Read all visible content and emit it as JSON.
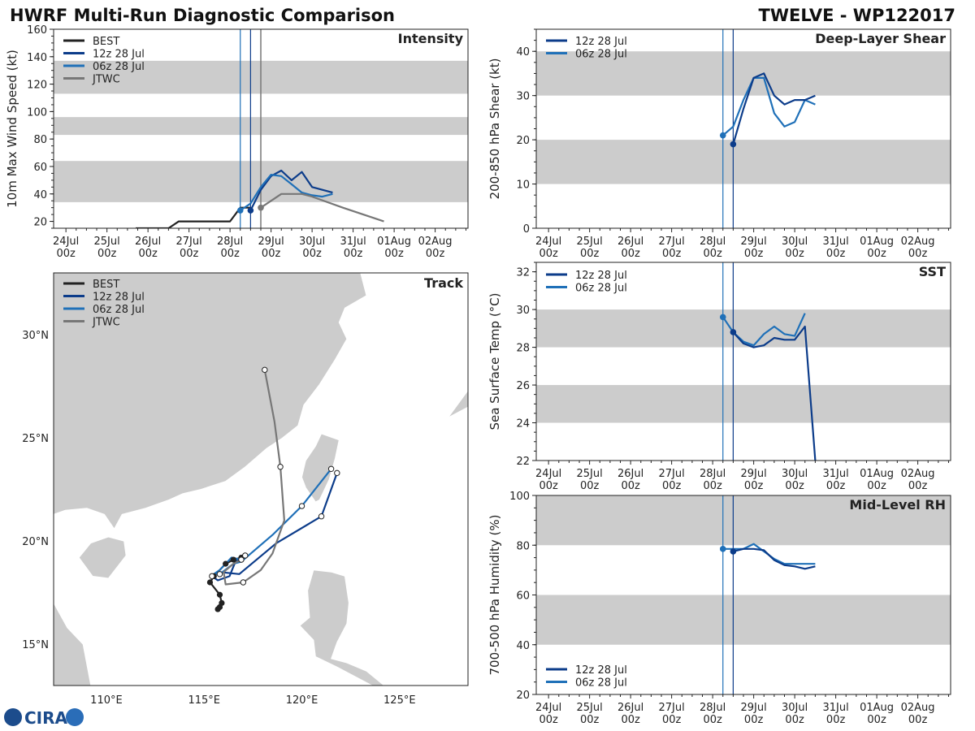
{
  "header": {
    "left_title": "HWRF Multi-Run Diagnostic Comparison",
    "right_title": "TWELVE - WP122017"
  },
  "logo": {
    "text": "CIRA"
  },
  "colors": {
    "best": "#222222",
    "run12z": "#0c3c8a",
    "run06z": "#1f70b8",
    "jtwc": "#777777",
    "band": "#cccccc",
    "land": "#cccccc"
  },
  "time_axis": {
    "day_labels": [
      "24Jul",
      "25Jul",
      "26Jul",
      "27Jul",
      "28Jul",
      "29Jul",
      "30Jul",
      "31Jul",
      "01Aug",
      "02Aug"
    ],
    "hour_label": "00z",
    "range_days": [
      23.7,
      33.8
    ],
    "init_lines": [
      28.25,
      28.5
    ]
  },
  "chart_data": [
    {
      "id": "intensity",
      "type": "line",
      "title": "Intensity",
      "ylabel": "10m Max Wind Speed (kt)",
      "ylim": [
        15,
        160
      ],
      "yticks": [
        20,
        40,
        60,
        80,
        100,
        120,
        140,
        160
      ],
      "bands": [
        [
          34,
          64
        ],
        [
          83,
          96
        ],
        [
          113,
          137
        ]
      ],
      "extra_vline": 28.75,
      "legend": [
        "BEST",
        "12z 28 Jul",
        "06z 28 Jul",
        "JTWC"
      ],
      "series": [
        {
          "name": "BEST",
          "color": "best",
          "x": [
            25.7,
            26.5,
            26.75,
            28.0,
            28.25,
            28.5
          ],
          "y": [
            15,
            15,
            20,
            20,
            30,
            30
          ],
          "marker_at_end": false
        },
        {
          "name": "12z 28 Jul",
          "color": "run12z",
          "x": [
            28.5,
            28.75,
            29.0,
            29.25,
            29.5,
            29.75,
            30.0,
            30.5
          ],
          "y": [
            28,
            43,
            53,
            57,
            50,
            56,
            45,
            41
          ],
          "start_marker": true
        },
        {
          "name": "06z 28 Jul",
          "color": "run06z",
          "x": [
            28.25,
            28.5,
            28.75,
            29.0,
            29.25,
            29.5,
            29.75,
            30.0,
            30.25,
            30.5
          ],
          "y": [
            28,
            33,
            45,
            54,
            53,
            47,
            41,
            39,
            38,
            40
          ],
          "start_marker": true
        },
        {
          "name": "JTWC",
          "color": "jtwc",
          "x": [
            28.75,
            29.25,
            29.75,
            30.0,
            30.75,
            31.75
          ],
          "y": [
            30,
            40,
            40,
            38,
            30,
            20
          ],
          "start_marker": true
        }
      ]
    },
    {
      "id": "shear",
      "type": "line",
      "title": "Deep-Layer Shear",
      "ylabel": "200-850 hPa Shear (kt)",
      "ylim": [
        0,
        45
      ],
      "yticks": [
        0,
        10,
        20,
        30,
        40
      ],
      "bands": [
        [
          10,
          20
        ],
        [
          30,
          40
        ]
      ],
      "legend": [
        "12z 28 Jul",
        "06z 28 Jul"
      ],
      "series": [
        {
          "name": "06z 28 Jul",
          "color": "run06z",
          "x": [
            28.25,
            28.5,
            28.75,
            29.0,
            29.25,
            29.5,
            29.75,
            30.0,
            30.25,
            30.5
          ],
          "y": [
            21,
            23,
            29,
            34,
            34,
            26,
            23,
            24,
            29,
            28
          ],
          "start_marker": true
        },
        {
          "name": "12z 28 Jul",
          "color": "run12z",
          "x": [
            28.5,
            28.75,
            29.0,
            29.25,
            29.5,
            29.75,
            30.0,
            30.25,
            30.5
          ],
          "y": [
            19,
            27,
            34,
            35,
            30,
            28,
            29,
            29,
            30
          ],
          "start_marker": true
        }
      ]
    },
    {
      "id": "sst",
      "type": "line",
      "title": "SST",
      "ylabel": "Sea Surface Temp (°C)",
      "ylim": [
        22,
        32.5
      ],
      "yticks": [
        22,
        24,
        26,
        28,
        30,
        32
      ],
      "bands": [
        [
          24,
          26
        ],
        [
          28,
          30
        ]
      ],
      "legend": [
        "12z 28 Jul",
        "06z 28 Jul"
      ],
      "series": [
        {
          "name": "06z 28 Jul",
          "color": "run06z",
          "x": [
            28.25,
            28.5,
            28.75,
            29.0,
            29.25,
            29.5,
            29.75,
            30.0,
            30.25
          ],
          "y": [
            29.6,
            28.8,
            28.3,
            28.1,
            28.7,
            29.1,
            28.7,
            28.6,
            29.8
          ],
          "start_marker": true
        },
        {
          "name": "12z 28 Jul",
          "color": "run12z",
          "x": [
            28.5,
            28.75,
            29.0,
            29.25,
            29.5,
            29.75,
            30.0,
            30.25,
            30.5
          ],
          "y": [
            28.8,
            28.2,
            28.0,
            28.1,
            28.5,
            28.4,
            28.4,
            29.1,
            22.0
          ],
          "start_marker": true
        }
      ]
    },
    {
      "id": "rh",
      "type": "line",
      "title": "Mid-Level RH",
      "ylabel": "700-500 hPa Humidity (%)",
      "ylim": [
        20,
        100
      ],
      "yticks": [
        20,
        40,
        60,
        80,
        100
      ],
      "bands": [
        [
          40,
          60
        ],
        [
          80,
          100
        ]
      ],
      "legend": [
        "12z 28 Jul",
        "06z 28 Jul"
      ],
      "series": [
        {
          "name": "06z 28 Jul",
          "color": "run06z",
          "x": [
            28.25,
            28.5,
            28.75,
            29.0,
            29.25,
            29.5,
            29.75,
            30.0,
            30.25,
            30.5
          ],
          "y": [
            78.5,
            78.5,
            78.5,
            80.5,
            77.5,
            74.5,
            72.5,
            72.5,
            72.5,
            72.5
          ],
          "start_marker": true
        },
        {
          "name": "12z 28 Jul",
          "color": "run12z",
          "x": [
            28.5,
            28.75,
            29.0,
            29.25,
            29.5,
            29.75,
            30.0,
            30.25,
            30.5
          ],
          "y": [
            77.5,
            78.5,
            78.5,
            78.0,
            74.0,
            72.0,
            71.5,
            70.5,
            71.5
          ],
          "start_marker": true
        }
      ]
    },
    {
      "id": "track",
      "type": "scatter",
      "title": "Track",
      "xlim": [
        107.3,
        128.5
      ],
      "ylim": [
        13.0,
        33.0
      ],
      "xticks": [
        110,
        115,
        120,
        125
      ],
      "xtick_labels": [
        "110°E",
        "115°E",
        "120°E",
        "125°E"
      ],
      "yticks": [
        15,
        20,
        25,
        30
      ],
      "ytick_labels": [
        "15°N",
        "20°N",
        "25°N",
        "30°N"
      ],
      "legend": [
        "BEST",
        "12z 28 Jul",
        "06z 28 Jul",
        "JTWC"
      ],
      "series": [
        {
          "name": "BEST",
          "color": "best",
          "lon": [
            115.7,
            115.8,
            115.9,
            115.8,
            115.3,
            115.5,
            116.1,
            116.5,
            116.9,
            117.1
          ],
          "lat": [
            16.7,
            16.8,
            17.0,
            17.4,
            18.0,
            18.3,
            18.9,
            19.1,
            19.2,
            19.3
          ]
        },
        {
          "name": "12z 28 Jul",
          "color": "run12z",
          "lon": [
            117.1,
            116.6,
            116.3,
            115.7,
            115.4,
            115.8,
            116.8,
            118.7,
            121.0,
            121.8
          ],
          "lat": [
            19.3,
            19.0,
            18.3,
            18.1,
            18.3,
            18.5,
            18.4,
            19.9,
            21.2,
            23.3
          ]
        },
        {
          "name": "06z 28 Jul",
          "color": "run06z",
          "lon": [
            116.9,
            116.4,
            115.8,
            115.5,
            115.8,
            116.5,
            116.9,
            118.5,
            120.0,
            121.5
          ],
          "lat": [
            19.1,
            19.2,
            18.6,
            18.4,
            18.4,
            18.9,
            19.0,
            20.3,
            21.7,
            23.5
          ]
        },
        {
          "name": "JTWC",
          "color": "jtwc",
          "lon": [
            116.9,
            116.5,
            116.0,
            116.1,
            117.0,
            117.9,
            118.5,
            119.1,
            118.9,
            118.6,
            118.1
          ],
          "lat": [
            19.1,
            18.9,
            18.5,
            17.9,
            18.0,
            18.6,
            19.4,
            21.0,
            23.6,
            25.8,
            28.3
          ]
        }
      ]
    }
  ]
}
